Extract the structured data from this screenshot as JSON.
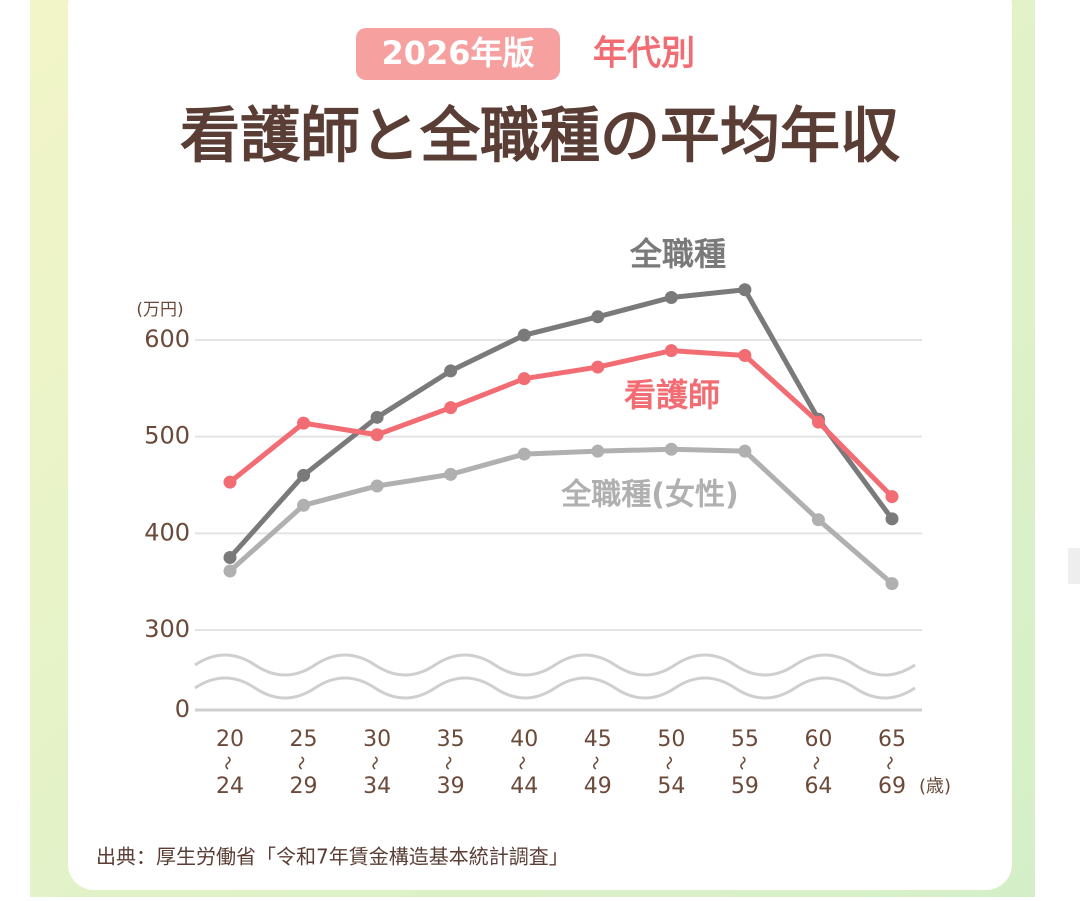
{
  "chart_data": {
    "type": "line",
    "badge": "2026年版",
    "subtitle": "年代別",
    "title": "看護師と全職種の平均年収",
    "y_unit": "(万円)",
    "x_unit": "(歳)",
    "source": "出典：厚生労働省「令和7年賃金構造基本統計調査」",
    "categories": [
      [
        "20",
        "24"
      ],
      [
        "25",
        "29"
      ],
      [
        "30",
        "34"
      ],
      [
        "35",
        "39"
      ],
      [
        "40",
        "44"
      ],
      [
        "45",
        "49"
      ],
      [
        "50",
        "54"
      ],
      [
        "55",
        "59"
      ],
      [
        "60",
        "64"
      ],
      [
        "65",
        "69"
      ]
    ],
    "series": [
      {
        "name": "全職種",
        "color": "#7a7a7a",
        "values": [
          375,
          460,
          520,
          568,
          605,
          624,
          644,
          652,
          518,
          415
        ]
      },
      {
        "name": "看護師",
        "color": "#f26d73",
        "values": [
          453,
          514,
          502,
          530,
          560,
          572,
          589,
          584,
          515,
          438
        ]
      },
      {
        "name": "全職種(女性)",
        "color": "#b0b0b0",
        "values": [
          361,
          429,
          449,
          461,
          482,
          485,
          487,
          485,
          414,
          348
        ]
      }
    ],
    "ylim": [
      0,
      660
    ],
    "yticks": [
      0,
      300,
      400,
      500,
      600
    ],
    "axis_break": [
      0,
      300
    ],
    "grid": true
  }
}
